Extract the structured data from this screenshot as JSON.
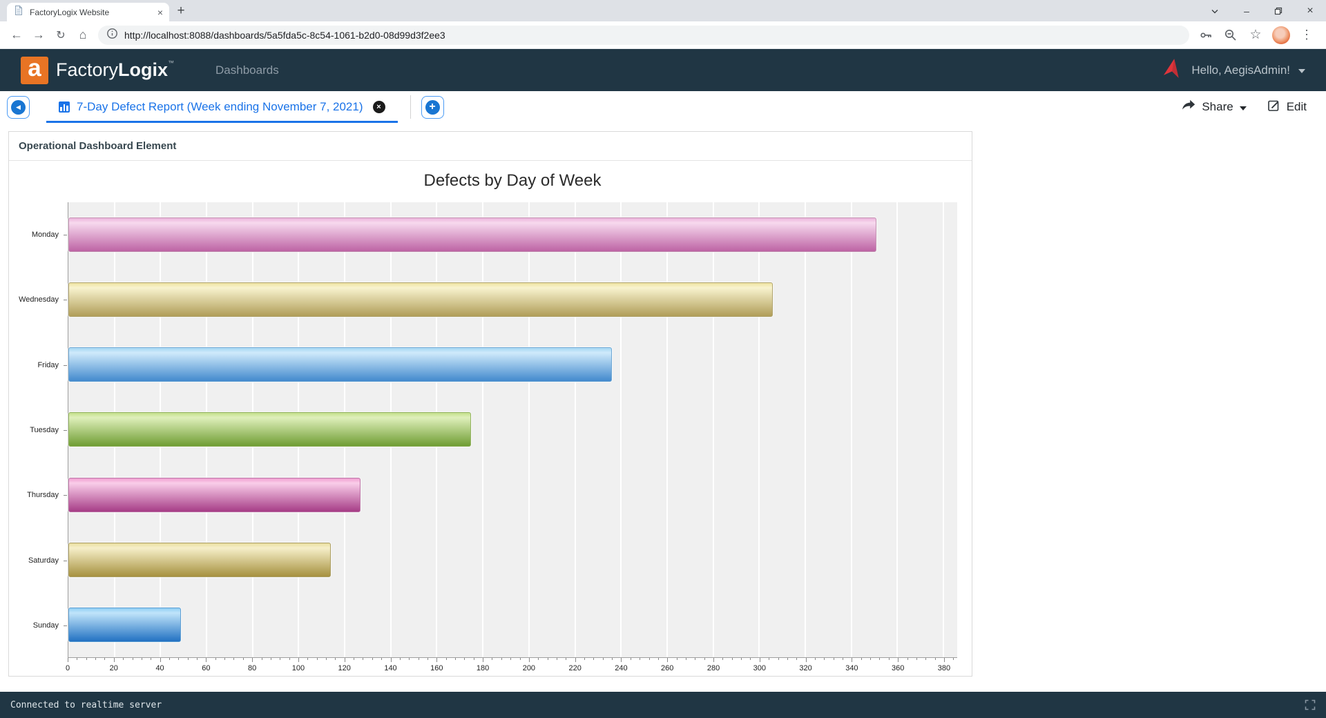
{
  "browser": {
    "tab_title": "FactoryLogix Website",
    "url": "http://localhost:8088/dashboards/5a5fda5c-8c54-1061-b2d0-08d99d3f2ee3"
  },
  "header": {
    "logo_letter": "a",
    "brand_light": "Factory",
    "brand_bold": "Logix",
    "trademark": "™",
    "nav_dashboards": "Dashboards",
    "greeting": "Hello, AegisAdmin!"
  },
  "tabbar": {
    "active_tab_label": "7-Day Defect Report (Week ending November 7, 2021)",
    "share_label": "Share",
    "edit_label": "Edit"
  },
  "panel": {
    "title": "Operational Dashboard Element"
  },
  "chart_data": {
    "type": "bar",
    "orientation": "horizontal",
    "title": "Defects by Day of Week",
    "categories": [
      "Monday",
      "Wednesday",
      "Friday",
      "Tuesday",
      "Thursday",
      "Saturday",
      "Sunday"
    ],
    "values": [
      351,
      306,
      236,
      175,
      127,
      114,
      49
    ],
    "xlabel": "",
    "ylabel": "",
    "xlim": [
      0,
      386
    ],
    "x_major_tick_step": 20,
    "x_minor_tick_step": 4,
    "x_last_label": 380,
    "grid": true,
    "legend": "none",
    "plot_bg": "#f0f0f0",
    "grid_color": "#ffffff",
    "bar_colors": [
      {
        "name": "orchid",
        "light": "#f7d9ee",
        "mid": "#ecb4dc",
        "dark": "#bd63a4",
        "border": "#c393b2"
      },
      {
        "name": "khaki",
        "light": "#f8f3cf",
        "mid": "#eee3a0",
        "dark": "#b09d58",
        "border": "#b1a570"
      },
      {
        "name": "sky-blue",
        "light": "#cfeafb",
        "mid": "#a5d7f3",
        "dark": "#4289cd",
        "border": "#6ea7d4"
      },
      {
        "name": "yellow-green",
        "light": "#dfefbb",
        "mid": "#c4e08a",
        "dark": "#6f9d33",
        "border": "#92b25f"
      },
      {
        "name": "magenta",
        "light": "#f9cde9",
        "mid": "#f1a0d2",
        "dark": "#a63c86",
        "border": "#bd76a7"
      },
      {
        "name": "dark-khaki",
        "light": "#f6efc9",
        "mid": "#eadfa0",
        "dark": "#a6913f",
        "border": "#ab9e63"
      },
      {
        "name": "blue",
        "light": "#c0e4fa",
        "mid": "#90d0f5",
        "dark": "#2271c2",
        "border": "#5e9ed2"
      }
    ]
  },
  "statusbar": {
    "text": "Connected to realtime server"
  },
  "icons": {
    "tab_close": "×",
    "new_tab": "+",
    "window_minimize": "–",
    "window_close": "×",
    "back": "←",
    "forward": "→",
    "reload": "↻",
    "home": "⌂",
    "star": "☆",
    "overflow_menu": "⋮",
    "tab_nav_left": "◀",
    "tab_add": "+"
  },
  "colors": {
    "accent_blue": "#1a73e8",
    "header_bg": "#203644",
    "logo_orange": "#e87424",
    "brand_red": "#e0353b"
  }
}
